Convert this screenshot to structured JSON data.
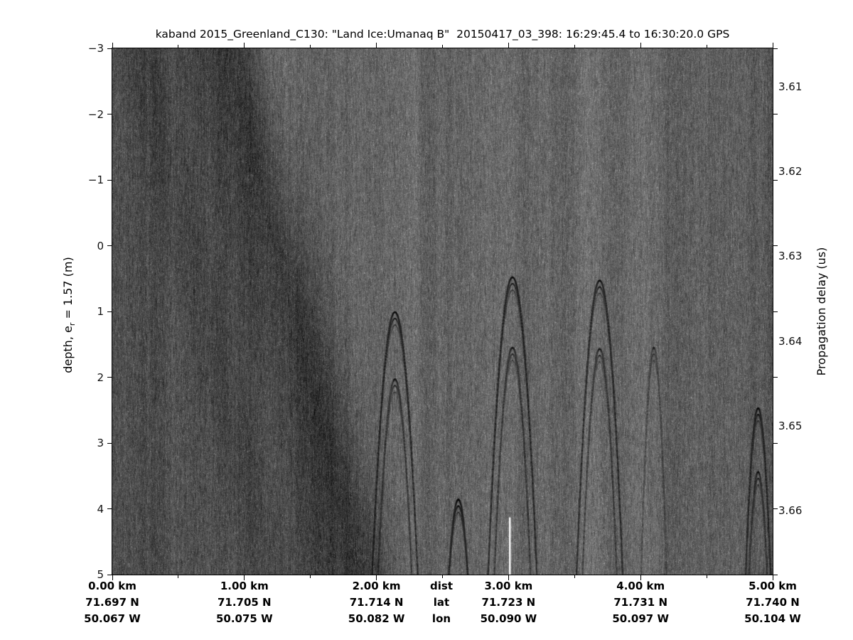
{
  "figure": {
    "title": "kaband 2015_Greenland_C130: \"Land Ice:Umanaq B\"  20150417_03_398: 16:29:45.4 to 16:30:20.0 GPS",
    "background_color": "#ffffff",
    "text_color": "#000000"
  },
  "left_axis": {
    "label_prefix": "depth, e",
    "label_sub": "r",
    "label_suffix": " = 1.57 (m)",
    "tick_labels": [
      "−3",
      "−2",
      "−1",
      "0",
      "1",
      "2",
      "3",
      "4",
      "5"
    ],
    "tick_values": [
      -3,
      -2,
      -1,
      0,
      1,
      2,
      3,
      4,
      5
    ]
  },
  "right_axis": {
    "label": "Propagation delay (us)",
    "tick_labels": [
      "3.61",
      "3.62",
      "3.63",
      "3.64",
      "3.65",
      "3.66"
    ],
    "tick_values": [
      3.61,
      3.62,
      3.63,
      3.64,
      3.65,
      3.66
    ],
    "range_us": [
      3.6055,
      3.6675
    ]
  },
  "bottom_axis": {
    "row_headers": [
      "dist",
      "lat",
      "lon"
    ],
    "columns": [
      {
        "km_value": 0,
        "dist": "0.00 km",
        "lat": "71.697 N",
        "lon": "50.067 W"
      },
      {
        "km_value": 1,
        "dist": "1.00 km",
        "lat": "71.705 N",
        "lon": "50.075 W"
      },
      {
        "km_value": 2,
        "dist": "2.00 km",
        "lat": "71.714 N",
        "lon": "50.082 W"
      },
      {
        "km_value": 3,
        "dist": "3.00 km",
        "lat": "71.723 N",
        "lon": "50.090 W"
      },
      {
        "km_value": 4,
        "dist": "4.00 km",
        "lat": "71.731 N",
        "lon": "50.097 W"
      },
      {
        "km_value": 5,
        "dist": "5.00 km",
        "lat": "71.740 N",
        "lon": "50.104 W"
      }
    ]
  },
  "chart_data": {
    "type": "heatmap",
    "title": "kaband 2015_Greenland_C130: \"Land Ice:Umanaq B\"  20150417_03_398: 16:29:45.4 to 16:30:20.0 GPS",
    "colormap": "grayscale",
    "x_range_km": [
      0,
      5
    ],
    "depth_range_m": [
      -3,
      5
    ],
    "delay_range_us": [
      3.6055,
      3.6675
    ],
    "x_ticks_km": [
      0,
      1,
      2,
      3,
      4,
      5
    ],
    "x_minor_ticks_km": [
      0.5,
      1.5,
      2.5,
      3.5,
      4.5
    ],
    "depth_ticks_m": [
      -3,
      -2,
      -1,
      0,
      1,
      2,
      3,
      4,
      5
    ],
    "delay_ticks_us": [
      3.61,
      3.62,
      3.63,
      3.64,
      3.65,
      3.66
    ],
    "background_gray_level": 103,
    "noise_amplitude": 30,
    "left_dark_zone": {
      "extent_km": [
        0,
        1.2
      ],
      "darkest_km": 0.93,
      "darkest_gray_level": 55,
      "boundary_slant_km_per_m": 0.125,
      "profile_km_gray": [
        [
          0,
          80
        ],
        [
          0.15,
          72
        ],
        [
          0.3,
          68
        ],
        [
          0.5,
          74
        ],
        [
          0.65,
          68
        ],
        [
          0.8,
          62
        ],
        [
          0.93,
          55
        ],
        [
          1.0,
          60
        ],
        [
          1.08,
          72
        ],
        [
          1.2,
          90
        ],
        [
          1.35,
          100
        ],
        [
          1.5,
          103
        ]
      ]
    },
    "brightness_profile_km_gray": [
      [
        0,
        103
      ],
      [
        1.45,
        103
      ],
      [
        1.55,
        95
      ],
      [
        1.65,
        99
      ],
      [
        1.95,
        104
      ],
      [
        2.3,
        100
      ],
      [
        2.58,
        97
      ],
      [
        2.66,
        101
      ],
      [
        3.0,
        104
      ],
      [
        3.3,
        101
      ],
      [
        3.6,
        102
      ],
      [
        4.0,
        101
      ],
      [
        4.25,
        95
      ],
      [
        4.45,
        92
      ],
      [
        4.6,
        95
      ],
      [
        4.75,
        90
      ],
      [
        4.9,
        93
      ],
      [
        5.0,
        86
      ]
    ],
    "diffraction_hyperbolas": [
      {
        "x_km": 2.14,
        "apex_depth_m": 1.01,
        "echo_depth_m": 2.03,
        "half_width_km": 0.178,
        "intensity": 1.0
      },
      {
        "x_km": 3.03,
        "apex_depth_m": 0.48,
        "echo_depth_m": 1.55,
        "half_width_km": 0.19,
        "intensity": 1.0
      },
      {
        "x_km": 3.69,
        "apex_depth_m": 0.53,
        "echo_depth_m": 1.57,
        "half_width_km": 0.18,
        "intensity": 0.9
      },
      {
        "x_km": 2.62,
        "apex_depth_m": 3.86,
        "half_width_km": 0.08,
        "intensity": 0.85
      },
      {
        "x_km": 4.89,
        "apex_depth_m": 2.47,
        "echo_depth_m": 3.44,
        "half_width_km": 0.1,
        "intensity": 0.8
      },
      {
        "x_km": 4.1,
        "apex_depth_m": 1.55,
        "half_width_km": 0.1,
        "intensity": 0.35
      }
    ],
    "white_dropout_trace": {
      "x_km": 3.01,
      "from_depth_m": 4.13,
      "to_depth_m": 5.0
    }
  }
}
